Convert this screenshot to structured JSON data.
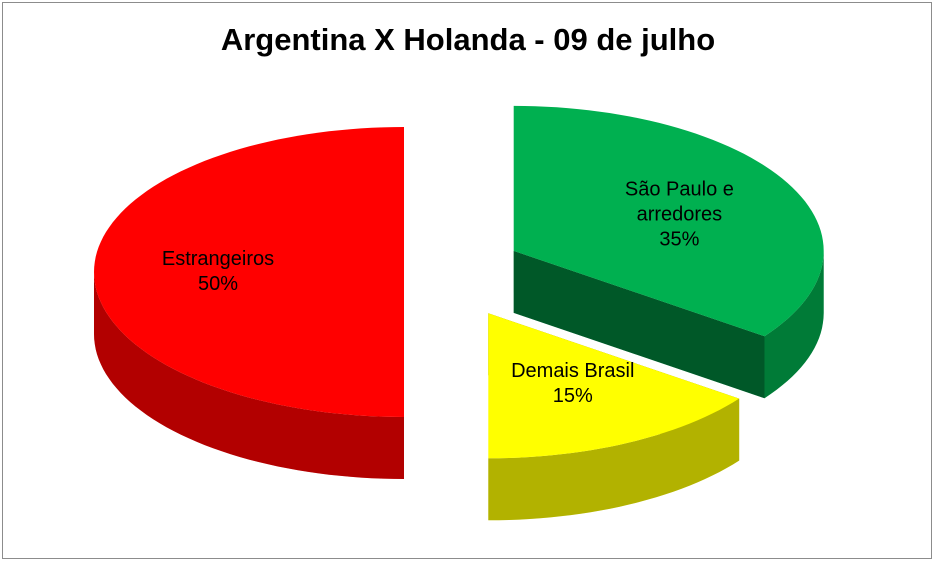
{
  "chart_data": {
    "type": "pie",
    "title": "Argentina X Holanda - 09 de julho",
    "categories": [
      "São Paulo e arredores",
      "Demais Brasil",
      "Estrangeiros"
    ],
    "values": [
      35,
      15,
      50
    ],
    "value_labels": [
      "35%",
      "15%",
      "50%"
    ],
    "colors": [
      "#00b050",
      "#ffff00",
      "#ff0000"
    ]
  }
}
